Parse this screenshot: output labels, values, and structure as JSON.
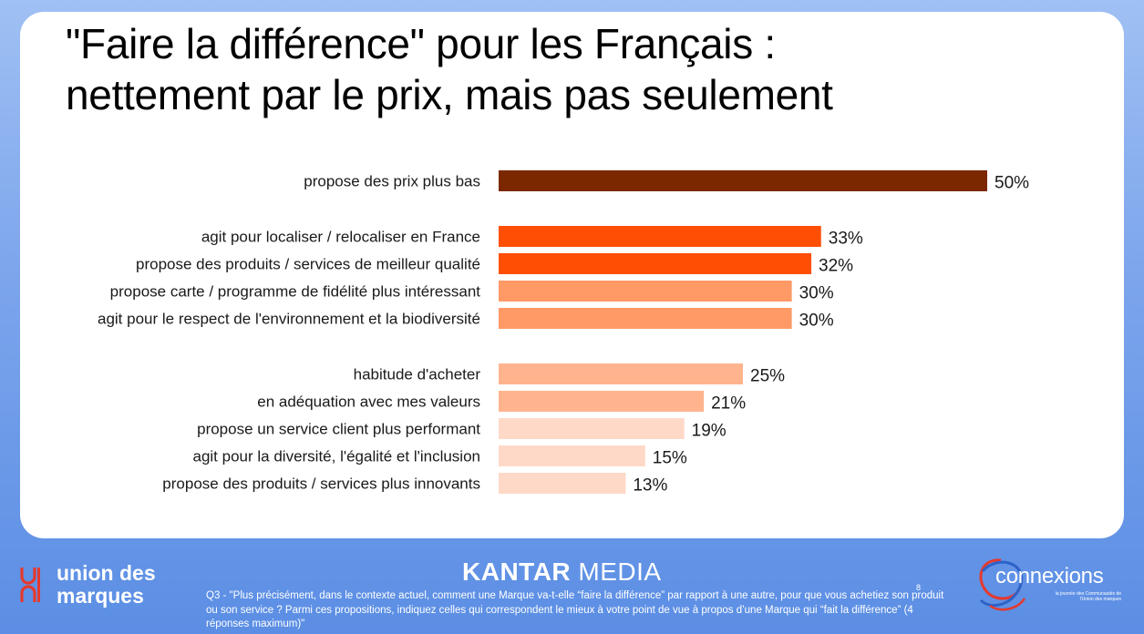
{
  "title": {
    "line1": "\"Faire la différence\" pour les Français :",
    "line2": "nettement par le prix, mais pas seulement"
  },
  "chart_data": {
    "type": "bar",
    "orientation": "horizontal",
    "categories": [
      "propose des prix plus bas",
      "agit pour localiser / relocaliser en France",
      "propose des produits / services de meilleur qualité",
      "propose carte / programme de fidélité plus intéressant",
      "agit pour le respect de l'environnement et la biodiversité",
      "habitude d'acheter",
      "en adéquation avec mes valeurs",
      "propose un service client plus performant",
      "agit pour la diversité, l'égalité et l'inclusion",
      "propose des produits / services plus innovants"
    ],
    "values": [
      50,
      33,
      32,
      30,
      30,
      25,
      21,
      19,
      15,
      13
    ],
    "value_labels": [
      "50%",
      "33%",
      "32%",
      "30%",
      "30%",
      "25%",
      "21%",
      "19%",
      "15%",
      "13%"
    ],
    "colors": [
      "#7b2800",
      "#ff4f04",
      "#ff4f04",
      "#ff9966",
      "#ff9966",
      "#ffb48e",
      "#ffb48e",
      "#ffd9c8",
      "#ffd9c8",
      "#ffd9c8"
    ],
    "groups": [
      [
        0
      ],
      [
        1,
        2,
        3,
        4
      ],
      [
        5,
        6,
        7,
        8,
        9
      ]
    ],
    "unit": "%",
    "xlim": [
      0,
      50
    ]
  },
  "footer": {
    "udm_line1": "union des",
    "udm_line2": "marques",
    "kantar_bold": "KANTAR",
    "kantar_light": "MEDIA",
    "question": "Q3 - \"Plus précisément, dans le contexte actuel, comment une Marque va-t-elle “faire la différence” par rapport à une autre, pour que vous achetiez son produit ou son service ?   Parmi ces propositions, indiquez celles qui correspondent le mieux à votre point de vue à propos d’une Marque qui “fait la différence” (4 réponses maximum)\"",
    "page_number": "8",
    "connexions_word": "connexions",
    "connexions_sub": "la journée des Communautés de l'Union des marques"
  },
  "colors": {
    "background": "#7ba4ec",
    "card": "#ffffff",
    "brand_blue": "#2d62c8",
    "brand_red": "#e5392e"
  }
}
